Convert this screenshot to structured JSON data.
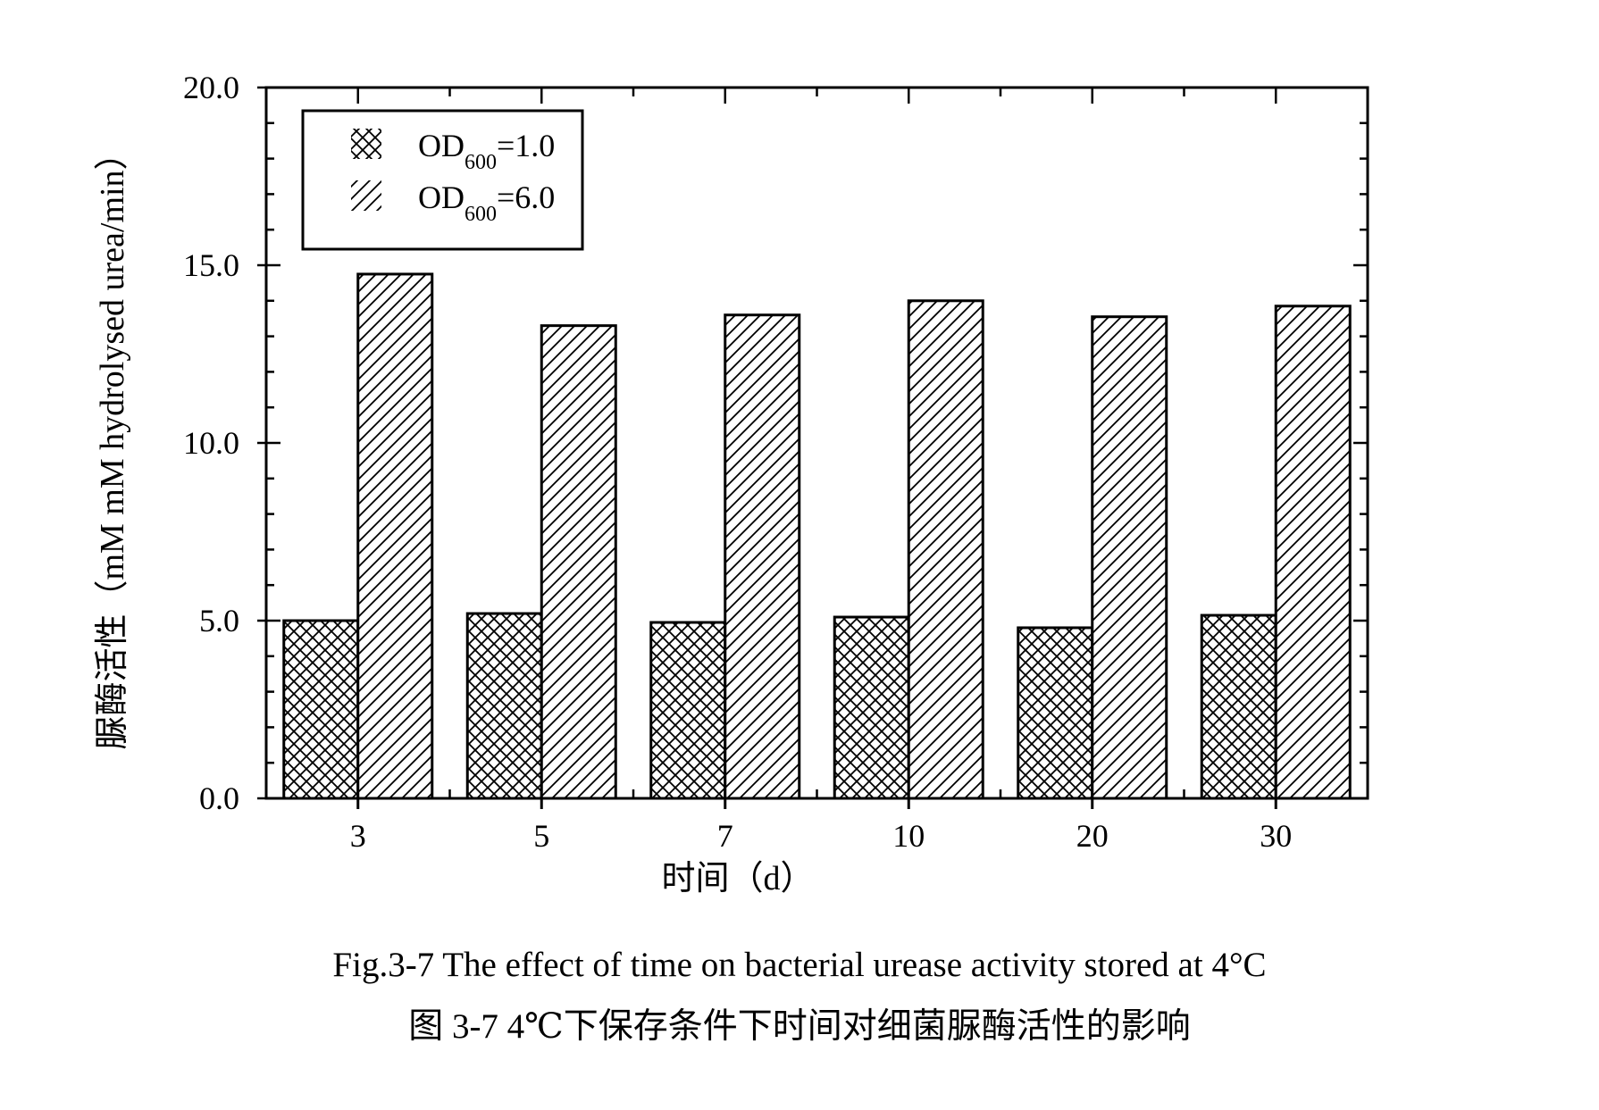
{
  "chart_data": {
    "type": "bar",
    "categories": [
      "3",
      "5",
      "7",
      "10",
      "20",
      "30"
    ],
    "series": [
      {
        "name": "OD600=1.0",
        "legend_main": "OD",
        "legend_sub": "600",
        "legend_tail": "=1.0",
        "pattern": "crosshatch",
        "values": [
          5.0,
          5.2,
          4.95,
          5.1,
          4.8,
          5.15
        ]
      },
      {
        "name": "OD600=6.0",
        "legend_main": "OD",
        "legend_sub": "600",
        "legend_tail": "=6.0",
        "pattern": "diagonal",
        "values": [
          14.75,
          13.3,
          13.6,
          14.0,
          13.55,
          13.85
        ]
      }
    ],
    "xlabel": "时间（d）",
    "ylabel": "脲酶活性（mM mM hydrolysed urea/min）",
    "ylim": [
      0,
      20
    ],
    "yticks": [
      "0.0",
      "5.0",
      "10.0",
      "15.0",
      "20.0"
    ],
    "legend_position": "top-left",
    "grid": false
  },
  "caption": {
    "english": "Fig.3-7 The effect of time on bacterial urease activity stored at 4°C",
    "chinese": "图 3-7 4℃下保存条件下时间对细菌脲酶活性的影响"
  }
}
